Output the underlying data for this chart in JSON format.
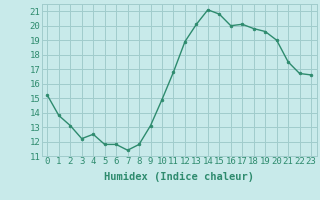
{
  "x": [
    0,
    1,
    2,
    3,
    4,
    5,
    6,
    7,
    8,
    9,
    10,
    11,
    12,
    13,
    14,
    15,
    16,
    17,
    18,
    19,
    20,
    21,
    22,
    23
  ],
  "y": [
    15.2,
    13.8,
    13.1,
    12.2,
    12.5,
    11.8,
    11.8,
    11.4,
    11.8,
    13.1,
    14.9,
    16.8,
    18.9,
    20.1,
    21.1,
    20.8,
    20.0,
    20.1,
    19.8,
    19.6,
    19.0,
    17.5,
    16.7,
    16.6
  ],
  "xlabel": "Humidex (Indice chaleur)",
  "xlim": [
    -0.5,
    23.5
  ],
  "ylim": [
    11,
    21.5
  ],
  "yticks": [
    11,
    12,
    13,
    14,
    15,
    16,
    17,
    18,
    19,
    20,
    21
  ],
  "xticks": [
    0,
    1,
    2,
    3,
    4,
    5,
    6,
    7,
    8,
    9,
    10,
    11,
    12,
    13,
    14,
    15,
    16,
    17,
    18,
    19,
    20,
    21,
    22,
    23
  ],
  "line_color": "#2e8b6e",
  "marker_color": "#2e8b6e",
  "bg_color": "#c8eaea",
  "grid_color": "#a0cccc",
  "label_fontsize": 7.5,
  "tick_fontsize": 6.5
}
